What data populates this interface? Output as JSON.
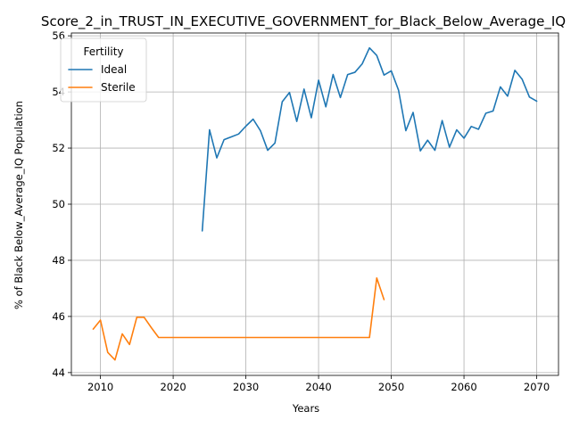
{
  "chart_data": {
    "type": "line",
    "title": "Score_2_in_TRUST_IN_EXECUTIVE_GOVERNMENT_for_Black_Below_Average_IQ",
    "xlabel": "Years",
    "ylabel": "% of Black Below_Average_IQ Population",
    "xlim": [
      2006,
      2073
    ],
    "ylim": [
      43.9,
      56.1
    ],
    "xticks": [
      2010,
      2020,
      2030,
      2040,
      2050,
      2060,
      2070
    ],
    "yticks": [
      44,
      46,
      48,
      50,
      52,
      54,
      56
    ],
    "grid": true,
    "legend": {
      "title": "Fertility",
      "placement": "top-left"
    },
    "series": [
      {
        "name": "Ideal",
        "color": "#1f77b4",
        "x": [
          2024,
          2025,
          2026,
          2027,
          2028,
          2029,
          2030,
          2031,
          2032,
          2033,
          2034,
          2035,
          2036,
          2037,
          2038,
          2039,
          2040,
          2041,
          2042,
          2043,
          2044,
          2045,
          2046,
          2047,
          2048,
          2049,
          2050,
          2051,
          2052,
          2053,
          2054,
          2055,
          2056,
          2057,
          2058,
          2059,
          2060,
          2061,
          2062,
          2063,
          2064,
          2065,
          2066,
          2067,
          2068,
          2069,
          2070
        ],
        "values": [
          49.05,
          52.65,
          51.65,
          52.3,
          52.4,
          52.5,
          52.78,
          53.03,
          52.62,
          51.92,
          52.18,
          53.65,
          53.98,
          52.95,
          54.1,
          53.08,
          54.42,
          53.47,
          54.62,
          53.8,
          54.62,
          54.7,
          55.0,
          55.57,
          55.3,
          54.6,
          54.75,
          54.06,
          52.62,
          53.27,
          51.9,
          52.28,
          51.92,
          52.98,
          52.03,
          52.65,
          52.35,
          52.77,
          52.67,
          53.24,
          53.32,
          54.18,
          53.85,
          54.77,
          54.45,
          53.82,
          53.67
        ]
      },
      {
        "name": "Sterile",
        "color": "#ff7f0e",
        "x": [
          2009,
          2010,
          2011,
          2012,
          2013,
          2014,
          2015,
          2016,
          2017,
          2018,
          2019,
          2020,
          2021,
          2022,
          2023,
          2024,
          2025,
          2026,
          2027,
          2028,
          2029,
          2030,
          2031,
          2032,
          2033,
          2034,
          2035,
          2036,
          2037,
          2038,
          2039,
          2040,
          2041,
          2042,
          2043,
          2044,
          2045,
          2046,
          2047,
          2048,
          2049
        ],
        "values": [
          45.55,
          45.87,
          44.72,
          44.45,
          45.38,
          45.0,
          45.97,
          45.97,
          45.6,
          45.25,
          45.25,
          45.25,
          45.25,
          45.25,
          45.25,
          45.25,
          45.25,
          45.25,
          45.25,
          45.25,
          45.25,
          45.25,
          45.25,
          45.25,
          45.25,
          45.25,
          45.25,
          45.25,
          45.25,
          45.25,
          45.25,
          45.25,
          45.25,
          45.25,
          45.25,
          45.25,
          45.25,
          45.25,
          45.25,
          47.37,
          46.6
        ]
      }
    ]
  }
}
